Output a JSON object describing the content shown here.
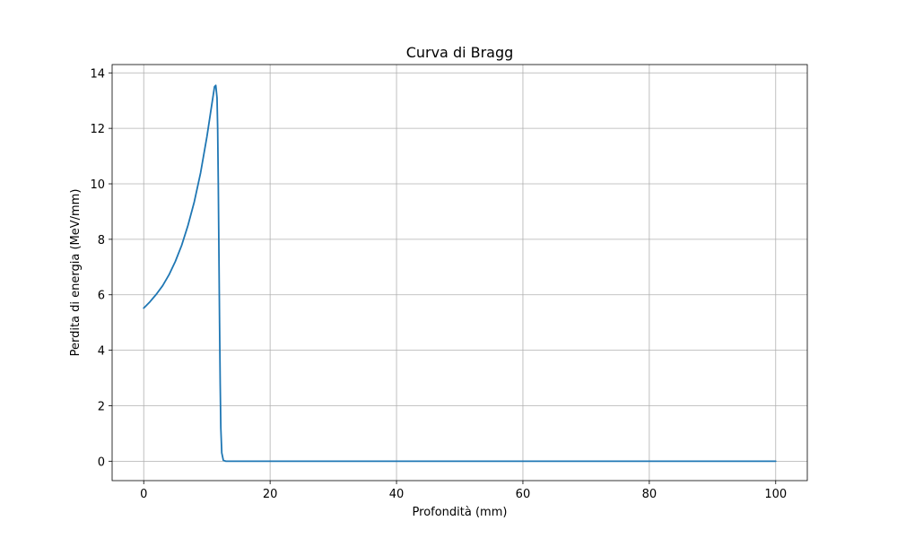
{
  "chart_data": {
    "type": "line",
    "title": "Curva di Bragg",
    "xlabel": "Profondità (mm)",
    "ylabel": "Perdita di energia (MeV/mm)",
    "xlim": [
      -5,
      105
    ],
    "ylim": [
      -0.7,
      14.3
    ],
    "xticks": [
      0,
      20,
      40,
      60,
      80,
      100
    ],
    "yticks": [
      0,
      2,
      4,
      6,
      8,
      10,
      12,
      14
    ],
    "grid": true,
    "series": [
      {
        "color": "#1f77b4",
        "points": [
          [
            0,
            5.52
          ],
          [
            1,
            5.75
          ],
          [
            2,
            6.02
          ],
          [
            3,
            6.33
          ],
          [
            4,
            6.72
          ],
          [
            5,
            7.2
          ],
          [
            6,
            7.78
          ],
          [
            7,
            8.5
          ],
          [
            8,
            9.35
          ],
          [
            9,
            10.4
          ],
          [
            10,
            11.7
          ],
          [
            10.8,
            12.9
          ],
          [
            11.2,
            13.5
          ],
          [
            11.4,
            13.55
          ],
          [
            11.6,
            13.1
          ],
          [
            11.7,
            12.0
          ],
          [
            11.8,
            10.0
          ],
          [
            11.9,
            7.5
          ],
          [
            12.0,
            5.0
          ],
          [
            12.1,
            2.8
          ],
          [
            12.2,
            1.2
          ],
          [
            12.35,
            0.3
          ],
          [
            12.6,
            0.03
          ],
          [
            13,
            0.0
          ],
          [
            20,
            0.0
          ],
          [
            40,
            0.0
          ],
          [
            60,
            0.0
          ],
          [
            80,
            0.0
          ],
          [
            100,
            0.0
          ]
        ]
      }
    ]
  }
}
